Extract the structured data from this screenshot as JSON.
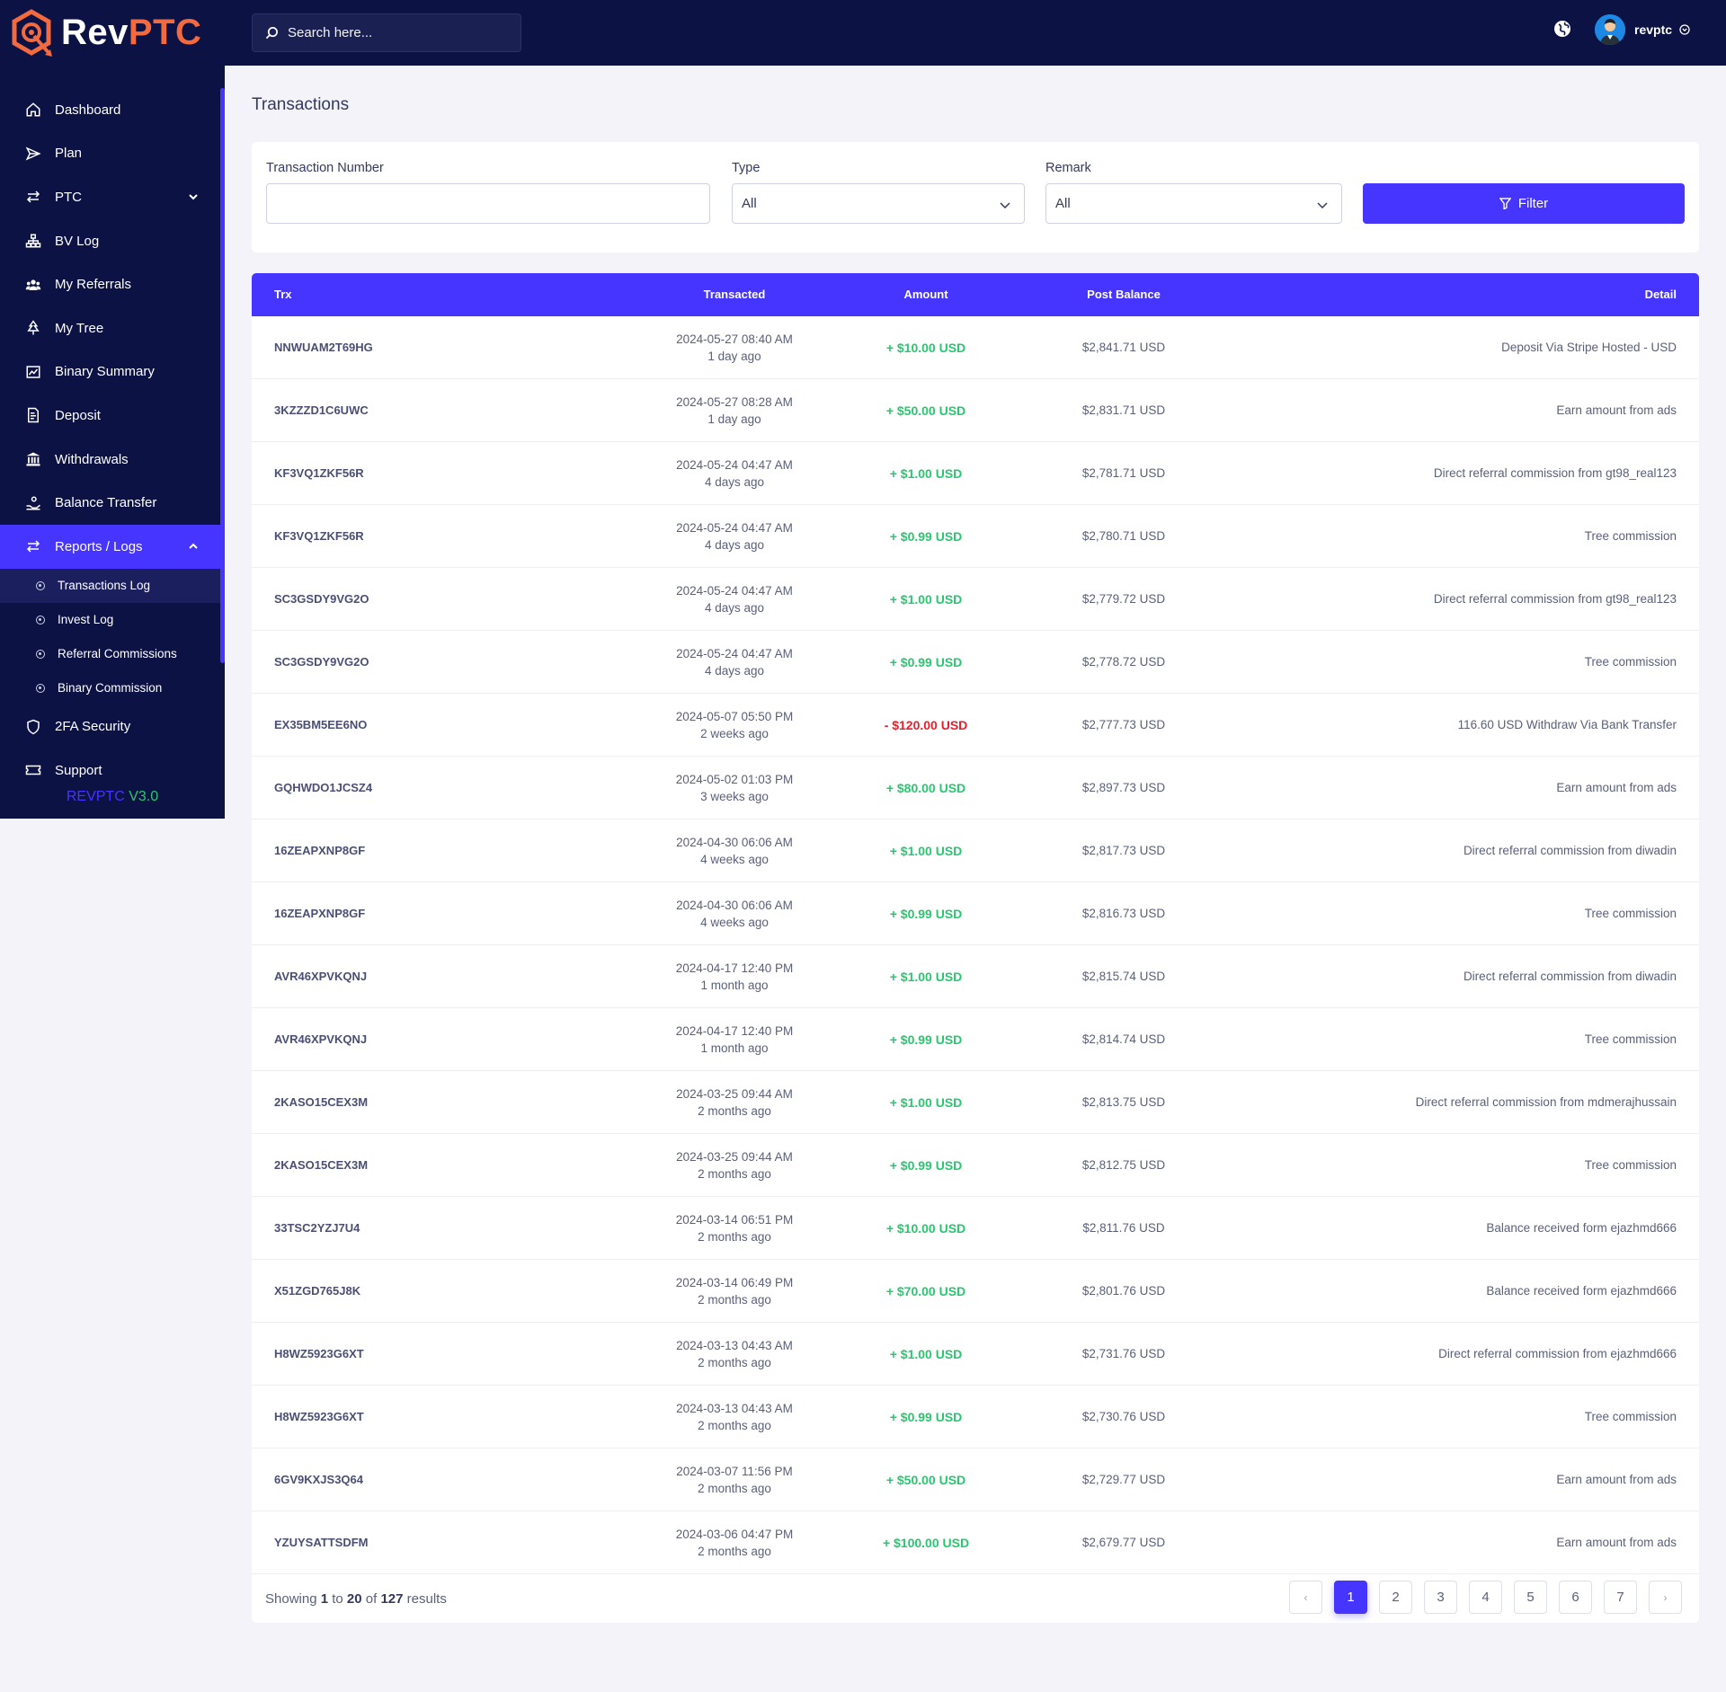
{
  "brand": {
    "name_a": "Rev",
    "name_b": "PTC",
    "version_a": "REVPTC",
    "version_b": "V3.0"
  },
  "colors": {
    "sidebar": "#0d1244",
    "accent": "#4634ff",
    "positive": "#28c76f",
    "negative": "#ea1d2c",
    "brand_orange": "#f26a3f"
  },
  "topbar": {
    "search_placeholder": "Search here...",
    "username": "revptc"
  },
  "sidebar": {
    "items": [
      {
        "label": "Dashboard",
        "icon": "home-icon"
      },
      {
        "label": "Plan",
        "icon": "send-icon"
      },
      {
        "label": "PTC",
        "icon": "exchange-icon"
      },
      {
        "label": "BV Log",
        "icon": "sitemap-icon"
      },
      {
        "label": "My Referrals",
        "icon": "users-icon"
      },
      {
        "label": "My Tree",
        "icon": "tree-icon"
      },
      {
        "label": "Binary Summary",
        "icon": "chart-icon"
      },
      {
        "label": "Deposit",
        "icon": "file-dollar-icon"
      },
      {
        "label": "Withdrawals",
        "icon": "bank-icon"
      },
      {
        "label": "Balance Transfer",
        "icon": "hand-coin-icon"
      },
      {
        "label": "Reports / Logs",
        "icon": "exchange-icon"
      },
      {
        "label": "2FA Security",
        "icon": "shield-icon"
      },
      {
        "label": "Support",
        "icon": "ticket-icon"
      }
    ],
    "submenu": [
      "Transactions Log",
      "Invest Log",
      "Referral Commissions",
      "Binary Commission"
    ]
  },
  "page": {
    "title": "Transactions"
  },
  "filters": {
    "trx_label": "Transaction Number",
    "trx_value": "",
    "type_label": "Type",
    "type_value": "All",
    "remark_label": "Remark",
    "remark_value": "All",
    "button": "Filter"
  },
  "table": {
    "headers": {
      "trx": "Trx",
      "transacted": "Transacted",
      "amount": "Amount",
      "post_balance": "Post Balance",
      "detail": "Detail"
    },
    "rows": [
      {
        "trx": "NNWUAM2T69HG",
        "date": "2024-05-27 08:40 AM",
        "ago": "1 day ago",
        "amount": "+ $10.00 USD",
        "sign": "pos",
        "balance": "$2,841.71 USD",
        "detail": "Deposit Via Stripe Hosted - USD"
      },
      {
        "trx": "3KZZZD1C6UWC",
        "date": "2024-05-27 08:28 AM",
        "ago": "1 day ago",
        "amount": "+ $50.00 USD",
        "sign": "pos",
        "balance": "$2,831.71 USD",
        "detail": "Earn amount from ads"
      },
      {
        "trx": "KF3VQ1ZKF56R",
        "date": "2024-05-24 04:47 AM",
        "ago": "4 days ago",
        "amount": "+ $1.00 USD",
        "sign": "pos",
        "balance": "$2,781.71 USD",
        "detail": "Direct referral commission from gt98_real123"
      },
      {
        "trx": "KF3VQ1ZKF56R",
        "date": "2024-05-24 04:47 AM",
        "ago": "4 days ago",
        "amount": "+ $0.99 USD",
        "sign": "pos",
        "balance": "$2,780.71 USD",
        "detail": "Tree commission"
      },
      {
        "trx": "SC3GSDY9VG2O",
        "date": "2024-05-24 04:47 AM",
        "ago": "4 days ago",
        "amount": "+ $1.00 USD",
        "sign": "pos",
        "balance": "$2,779.72 USD",
        "detail": "Direct referral commission from gt98_real123"
      },
      {
        "trx": "SC3GSDY9VG2O",
        "date": "2024-05-24 04:47 AM",
        "ago": "4 days ago",
        "amount": "+ $0.99 USD",
        "sign": "pos",
        "balance": "$2,778.72 USD",
        "detail": "Tree commission"
      },
      {
        "trx": "EX35BM5EE6NO",
        "date": "2024-05-07 05:50 PM",
        "ago": "2 weeks ago",
        "amount": "- $120.00 USD",
        "sign": "neg",
        "balance": "$2,777.73 USD",
        "detail": "116.60 USD Withdraw Via Bank Transfer"
      },
      {
        "trx": "GQHWDO1JCSZ4",
        "date": "2024-05-02 01:03 PM",
        "ago": "3 weeks ago",
        "amount": "+ $80.00 USD",
        "sign": "pos",
        "balance": "$2,897.73 USD",
        "detail": "Earn amount from ads"
      },
      {
        "trx": "16ZEAPXNP8GF",
        "date": "2024-04-30 06:06 AM",
        "ago": "4 weeks ago",
        "amount": "+ $1.00 USD",
        "sign": "pos",
        "balance": "$2,817.73 USD",
        "detail": "Direct referral commission from diwadin"
      },
      {
        "trx": "16ZEAPXNP8GF",
        "date": "2024-04-30 06:06 AM",
        "ago": "4 weeks ago",
        "amount": "+ $0.99 USD",
        "sign": "pos",
        "balance": "$2,816.73 USD",
        "detail": "Tree commission"
      },
      {
        "trx": "AVR46XPVKQNJ",
        "date": "2024-04-17 12:40 PM",
        "ago": "1 month ago",
        "amount": "+ $1.00 USD",
        "sign": "pos",
        "balance": "$2,815.74 USD",
        "detail": "Direct referral commission from diwadin"
      },
      {
        "trx": "AVR46XPVKQNJ",
        "date": "2024-04-17 12:40 PM",
        "ago": "1 month ago",
        "amount": "+ $0.99 USD",
        "sign": "pos",
        "balance": "$2,814.74 USD",
        "detail": "Tree commission"
      },
      {
        "trx": "2KASO15CEX3M",
        "date": "2024-03-25 09:44 AM",
        "ago": "2 months ago",
        "amount": "+ $1.00 USD",
        "sign": "pos",
        "balance": "$2,813.75 USD",
        "detail": "Direct referral commission from mdmerajhussain"
      },
      {
        "trx": "2KASO15CEX3M",
        "date": "2024-03-25 09:44 AM",
        "ago": "2 months ago",
        "amount": "+ $0.99 USD",
        "sign": "pos",
        "balance": "$2,812.75 USD",
        "detail": "Tree commission"
      },
      {
        "trx": "33TSC2YZJ7U4",
        "date": "2024-03-14 06:51 PM",
        "ago": "2 months ago",
        "amount": "+ $10.00 USD",
        "sign": "pos",
        "balance": "$2,811.76 USD",
        "detail": "Balance received form ejazhmd666"
      },
      {
        "trx": "X51ZGD765J8K",
        "date": "2024-03-14 06:49 PM",
        "ago": "2 months ago",
        "amount": "+ $70.00 USD",
        "sign": "pos",
        "balance": "$2,801.76 USD",
        "detail": "Balance received form ejazhmd666"
      },
      {
        "trx": "H8WZ5923G6XT",
        "date": "2024-03-13 04:43 AM",
        "ago": "2 months ago",
        "amount": "+ $1.00 USD",
        "sign": "pos",
        "balance": "$2,731.76 USD",
        "detail": "Direct referral commission from ejazhmd666"
      },
      {
        "trx": "H8WZ5923G6XT",
        "date": "2024-03-13 04:43 AM",
        "ago": "2 months ago",
        "amount": "+ $0.99 USD",
        "sign": "pos",
        "balance": "$2,730.76 USD",
        "detail": "Tree commission"
      },
      {
        "trx": "6GV9KXJS3Q64",
        "date": "2024-03-07 11:56 PM",
        "ago": "2 months ago",
        "amount": "+ $50.00 USD",
        "sign": "pos",
        "balance": "$2,729.77 USD",
        "detail": "Earn amount from ads"
      },
      {
        "trx": "YZUYSATTSDFM",
        "date": "2024-03-06 04:47 PM",
        "ago": "2 months ago",
        "amount": "+ $100.00 USD",
        "sign": "pos",
        "balance": "$2,679.77 USD",
        "detail": "Earn amount from ads"
      }
    ]
  },
  "pagination": {
    "showing_prefix": "Showing",
    "from": "1",
    "to_word": "to",
    "to": "20",
    "of_word": "of",
    "total": "127",
    "suffix": "results",
    "prev": "‹",
    "next": "›",
    "pages": [
      "1",
      "2",
      "3",
      "4",
      "5",
      "6",
      "7"
    ]
  }
}
